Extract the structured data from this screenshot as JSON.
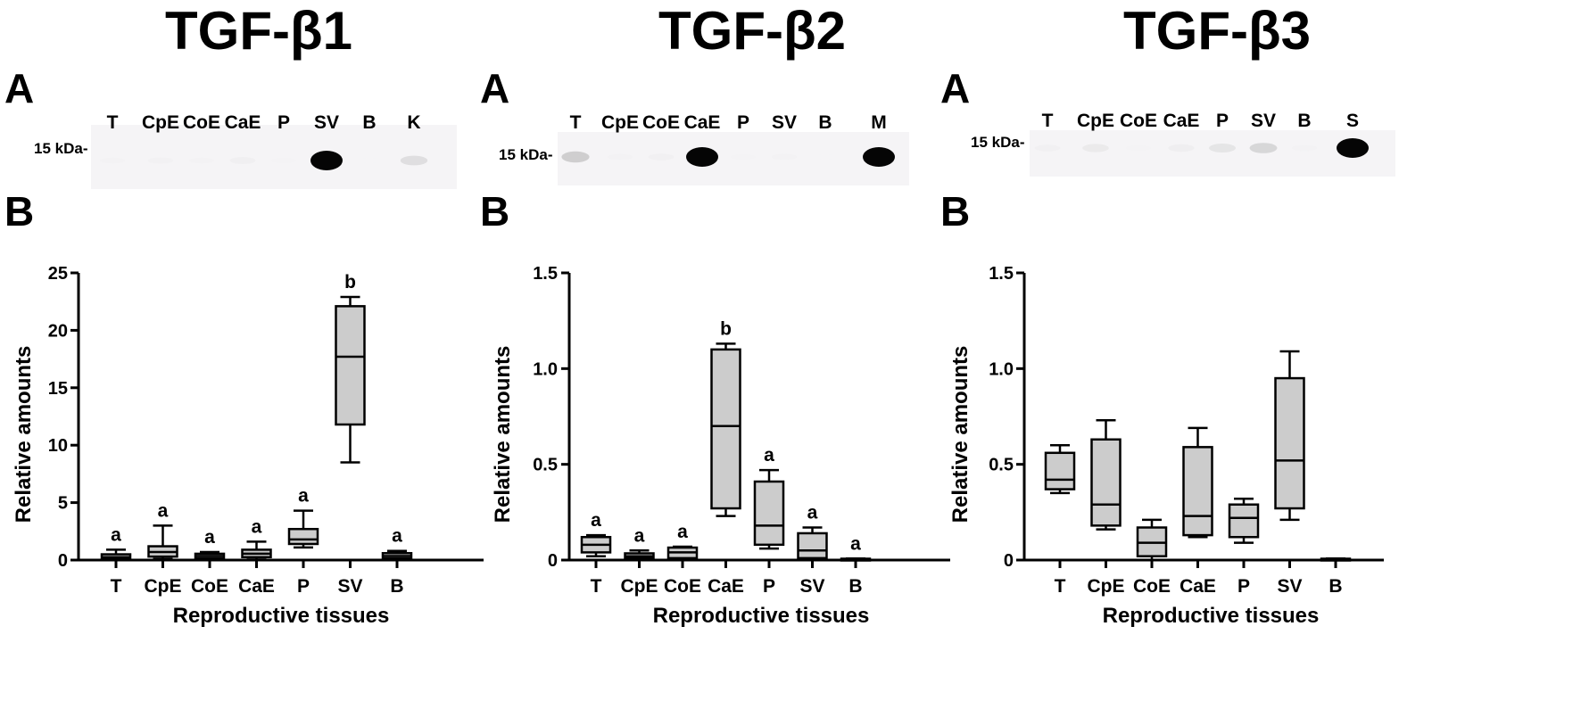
{
  "panels": [
    {
      "title": "TGF-β1",
      "blot_letter": "A",
      "chart_letter": "B",
      "blot": {
        "lanes": [
          "T",
          "CpE",
          "CoE",
          "CaE",
          "P",
          "SV",
          "B",
          "K"
        ],
        "marker": "15 kDa-",
        "band_intensity": [
          0.03,
          0.07,
          0.03,
          0.12,
          0.02,
          1.0,
          0.0,
          0.3
        ]
      }
    },
    {
      "title": "TGF-β2",
      "blot_letter": "A",
      "chart_letter": "B",
      "blot": {
        "lanes": [
          "T",
          "CpE",
          "CoE",
          "CaE",
          "P",
          "SV",
          "B",
          "M"
        ],
        "marker": "15 kDa-",
        "band_intensity": [
          0.4,
          0.03,
          0.1,
          1.0,
          0.02,
          0.05,
          0.0,
          1.0
        ]
      }
    },
    {
      "title": "TGF-β3",
      "blot_letter": "A",
      "chart_letter": "B",
      "blot": {
        "lanes": [
          "T",
          "CpE",
          "CoE",
          "CaE",
          "P",
          "SV",
          "B",
          "S"
        ],
        "marker": "15 kDa-",
        "band_intensity": [
          0.1,
          0.2,
          0.02,
          0.15,
          0.25,
          0.35,
          0.05,
          1.0
        ]
      }
    }
  ],
  "chart_data": [
    {
      "type": "box",
      "xlabel": "Reproductive tissues",
      "ylabel": "Relative amounts",
      "ylim": [
        0,
        25
      ],
      "yticks": [
        "0",
        "5",
        "10",
        "15",
        "20",
        "25"
      ],
      "ytick_values": [
        0,
        5,
        10,
        15,
        20,
        25
      ],
      "categories": [
        "T",
        "CpE",
        "CoE",
        "CaE",
        "P",
        "SV",
        "B"
      ],
      "boxes": [
        {
          "min": 0.05,
          "q1": 0.1,
          "median": 0.25,
          "q3": 0.5,
          "max": 0.9
        },
        {
          "min": 0.1,
          "q1": 0.3,
          "median": 0.7,
          "q3": 1.2,
          "max": 3.0
        },
        {
          "min": 0.05,
          "q1": 0.15,
          "median": 0.35,
          "q3": 0.55,
          "max": 0.7
        },
        {
          "min": 0.05,
          "q1": 0.25,
          "median": 0.55,
          "q3": 0.9,
          "max": 1.6
        },
        {
          "min": 1.1,
          "q1": 1.4,
          "median": 1.8,
          "q3": 2.7,
          "max": 4.3
        },
        {
          "min": 8.5,
          "q1": 11.8,
          "median": 17.7,
          "q3": 22.1,
          "max": 22.9
        },
        {
          "min": 0.05,
          "q1": 0.15,
          "median": 0.35,
          "q3": 0.6,
          "max": 0.8
        }
      ],
      "annotations": [
        "a",
        "a",
        "a",
        "a",
        "a",
        "b",
        "a"
      ]
    },
    {
      "type": "box",
      "xlabel": "Reproductive tissues",
      "ylabel": "Relative amounts",
      "ylim": [
        0,
        1.5
      ],
      "yticks": [
        "0",
        "0.5",
        "1.0",
        "1.5"
      ],
      "ytick_values": [
        0,
        0.5,
        1.0,
        1.5
      ],
      "categories": [
        "T",
        "CpE",
        "CoE",
        "CaE",
        "P",
        "SV",
        "B"
      ],
      "boxes": [
        {
          "min": 0.02,
          "q1": 0.04,
          "median": 0.08,
          "q3": 0.12,
          "max": 0.13
        },
        {
          "min": 0.0,
          "q1": 0.01,
          "median": 0.02,
          "q3": 0.035,
          "max": 0.05
        },
        {
          "min": 0.0,
          "q1": 0.01,
          "median": 0.04,
          "q3": 0.065,
          "max": 0.07
        },
        {
          "min": 0.23,
          "q1": 0.27,
          "median": 0.7,
          "q3": 1.1,
          "max": 1.13
        },
        {
          "min": 0.06,
          "q1": 0.08,
          "median": 0.18,
          "q3": 0.41,
          "max": 0.47
        },
        {
          "min": 0.0,
          "q1": 0.01,
          "median": 0.05,
          "q3": 0.14,
          "max": 0.17
        },
        {
          "min": 0.0,
          "q1": 0.0,
          "median": 0.005,
          "q3": 0.007,
          "max": 0.008
        }
      ],
      "annotations": [
        "a",
        "a",
        "a",
        "b",
        "a",
        "a",
        "a"
      ]
    },
    {
      "type": "box",
      "xlabel": "Reproductive tissues",
      "ylabel": "Relative amounts",
      "ylim": [
        0,
        1.5
      ],
      "yticks": [
        "0",
        "0.5",
        "1.0",
        "1.5"
      ],
      "ytick_values": [
        0,
        0.5,
        1.0,
        1.5
      ],
      "categories": [
        "T",
        "CpE",
        "CoE",
        "CaE",
        "P",
        "SV",
        "B"
      ],
      "boxes": [
        {
          "min": 0.35,
          "q1": 0.37,
          "median": 0.42,
          "q3": 0.56,
          "max": 0.6
        },
        {
          "min": 0.16,
          "q1": 0.18,
          "median": 0.29,
          "q3": 0.63,
          "max": 0.73
        },
        {
          "min": 0.0,
          "q1": 0.02,
          "median": 0.09,
          "q3": 0.17,
          "max": 0.21
        },
        {
          "min": 0.12,
          "q1": 0.13,
          "median": 0.23,
          "q3": 0.59,
          "max": 0.69
        },
        {
          "min": 0.09,
          "q1": 0.12,
          "median": 0.22,
          "q3": 0.29,
          "max": 0.32
        },
        {
          "min": 0.21,
          "q1": 0.27,
          "median": 0.52,
          "q3": 0.95,
          "max": 1.09
        },
        {
          "min": 0.0,
          "q1": 0.0,
          "median": 0.005,
          "q3": 0.007,
          "max": 0.008
        }
      ],
      "annotations": []
    }
  ]
}
